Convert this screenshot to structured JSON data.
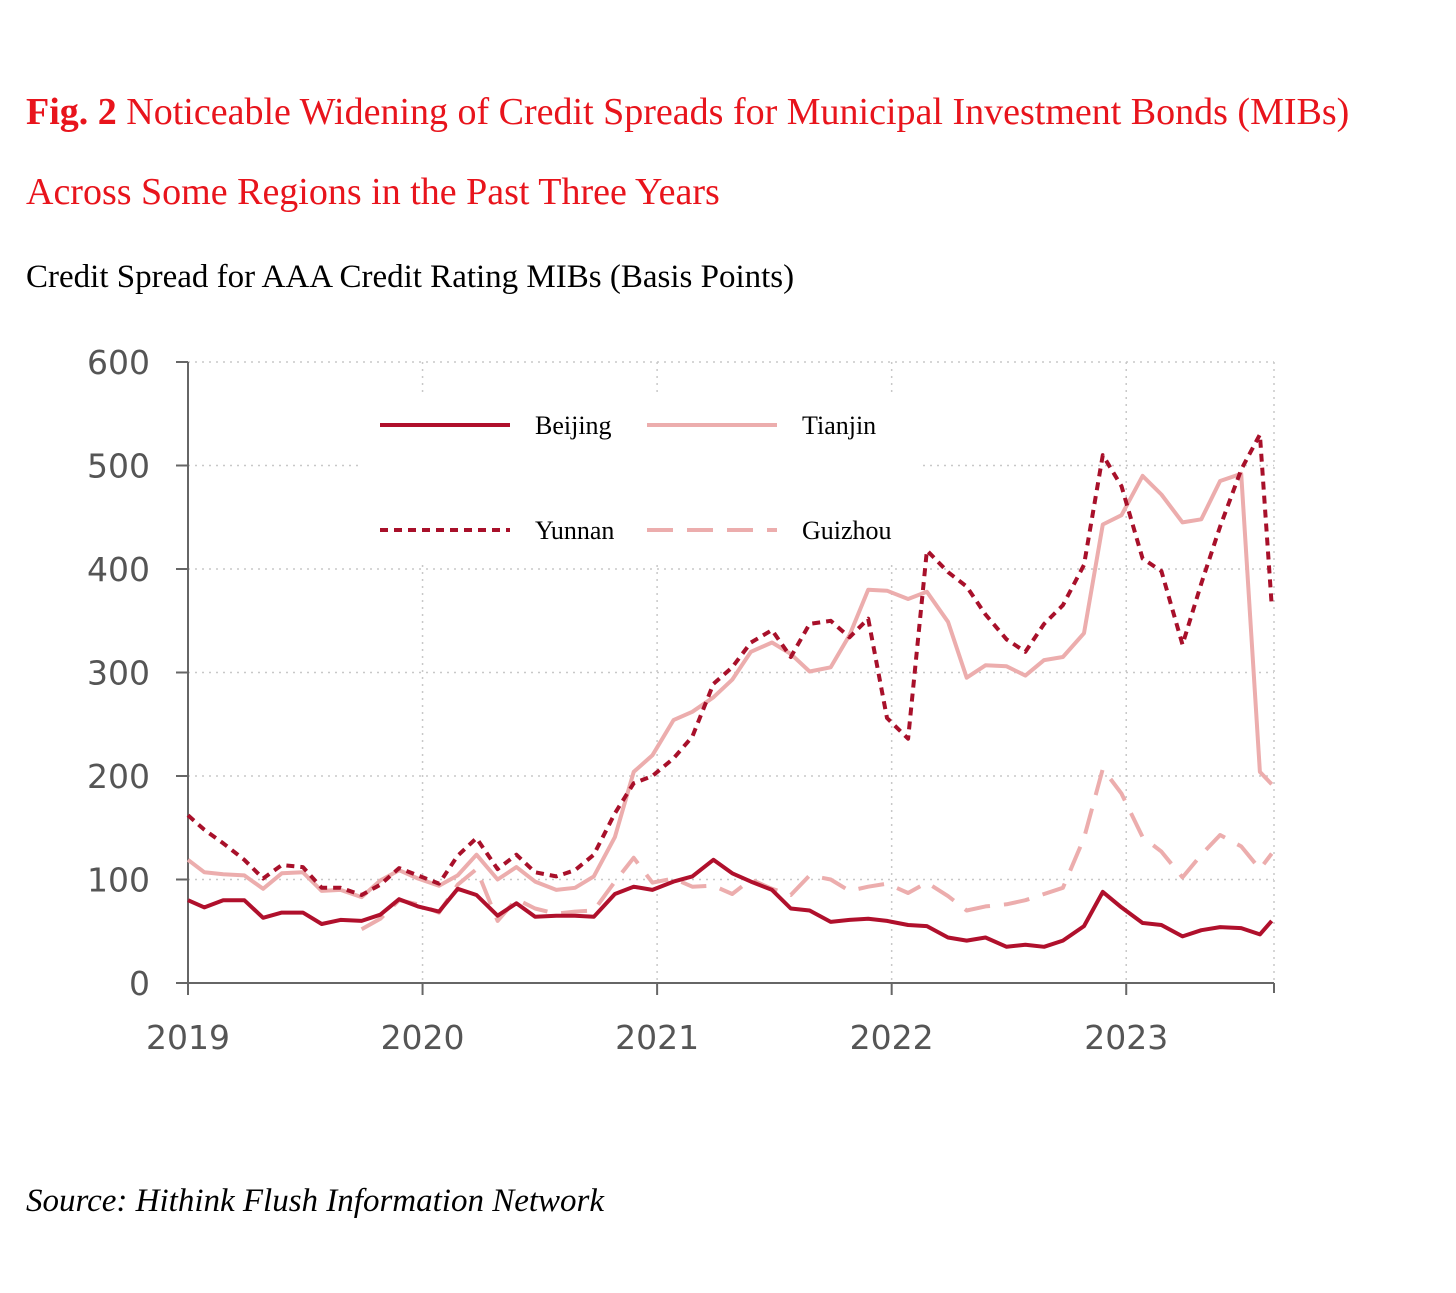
{
  "figure": {
    "label": "Fig. 2",
    "title": "Noticeable Widening of Credit Spreads for Municipal Investment Bonds (MIBs) Across Some Regions in the Past Three Years",
    "source": "Source: Hithink Flush Information Network"
  },
  "chart_data": {
    "type": "line",
    "title": "Credit Spread for AAA Credit Rating MIBs (Basis Points)",
    "xlabel": "",
    "ylabel": "",
    "xlim": [
      2019.0,
      2023.63
    ],
    "ylim": [
      0,
      600
    ],
    "x_ticks": [
      "2019",
      "2020",
      "2021",
      "2022",
      "2023"
    ],
    "y_ticks": [
      0,
      100,
      200,
      300,
      400,
      500,
      600
    ],
    "grid": true,
    "legend_position": "top-center",
    "series": [
      {
        "name": "Beijing",
        "style": "solid",
        "color": "#b0102c",
        "points": [
          [
            2019.0,
            80
          ],
          [
            2019.07,
            73
          ],
          [
            2019.15,
            80
          ],
          [
            2019.24,
            80
          ],
          [
            2019.32,
            63
          ],
          [
            2019.4,
            68
          ],
          [
            2019.49,
            68
          ],
          [
            2019.57,
            57
          ],
          [
            2019.65,
            61
          ],
          [
            2019.74,
            60
          ],
          [
            2019.82,
            66
          ],
          [
            2019.9,
            81
          ],
          [
            2019.98,
            74
          ],
          [
            2020.07,
            69
          ],
          [
            2020.15,
            91
          ],
          [
            2020.23,
            85
          ],
          [
            2020.32,
            65
          ],
          [
            2020.4,
            77
          ],
          [
            2020.48,
            64
          ],
          [
            2020.57,
            65
          ],
          [
            2020.65,
            65
          ],
          [
            2020.73,
            64
          ],
          [
            2020.82,
            86
          ],
          [
            2020.9,
            93
          ],
          [
            2020.98,
            90
          ],
          [
            2021.07,
            98
          ],
          [
            2021.15,
            103
          ],
          [
            2021.24,
            119
          ],
          [
            2021.32,
            106
          ],
          [
            2021.4,
            98
          ],
          [
            2021.49,
            90
          ],
          [
            2021.57,
            72
          ],
          [
            2021.65,
            70
          ],
          [
            2021.74,
            59
          ],
          [
            2021.82,
            61
          ],
          [
            2021.9,
            62
          ],
          [
            2021.98,
            60
          ],
          [
            2022.07,
            56
          ],
          [
            2022.15,
            55
          ],
          [
            2022.24,
            44
          ],
          [
            2022.32,
            41
          ],
          [
            2022.4,
            44
          ],
          [
            2022.49,
            35
          ],
          [
            2022.57,
            37
          ],
          [
            2022.65,
            35
          ],
          [
            2022.73,
            41
          ],
          [
            2022.82,
            55
          ],
          [
            2022.9,
            88
          ],
          [
            2022.98,
            73
          ],
          [
            2023.07,
            58
          ],
          [
            2023.15,
            56
          ],
          [
            2023.24,
            45
          ],
          [
            2023.32,
            51
          ],
          [
            2023.4,
            54
          ],
          [
            2023.49,
            53
          ],
          [
            2023.57,
            47
          ],
          [
            2023.62,
            60
          ]
        ]
      },
      {
        "name": "Tianjin",
        "style": "solid",
        "color": "#ecadad",
        "points": [
          [
            2019.0,
            119
          ],
          [
            2019.07,
            107
          ],
          [
            2019.15,
            105
          ],
          [
            2019.24,
            104
          ],
          [
            2019.32,
            91
          ],
          [
            2019.4,
            106
          ],
          [
            2019.49,
            107
          ],
          [
            2019.57,
            89
          ],
          [
            2019.65,
            90
          ],
          [
            2019.74,
            83
          ],
          [
            2019.82,
            99
          ],
          [
            2019.9,
            109
          ],
          [
            2019.98,
            101
          ],
          [
            2020.07,
            94
          ],
          [
            2020.15,
            104
          ],
          [
            2020.23,
            124
          ],
          [
            2020.32,
            100
          ],
          [
            2020.4,
            112
          ],
          [
            2020.48,
            98
          ],
          [
            2020.57,
            90
          ],
          [
            2020.65,
            92
          ],
          [
            2020.73,
            103
          ],
          [
            2020.82,
            141
          ],
          [
            2020.9,
            204
          ],
          [
            2020.98,
            220
          ],
          [
            2021.07,
            254
          ],
          [
            2021.15,
            262
          ],
          [
            2021.24,
            276
          ],
          [
            2021.32,
            293
          ],
          [
            2021.4,
            320
          ],
          [
            2021.49,
            329
          ],
          [
            2021.57,
            318
          ],
          [
            2021.65,
            301
          ],
          [
            2021.74,
            305
          ],
          [
            2021.82,
            336
          ],
          [
            2021.9,
            380
          ],
          [
            2021.98,
            379
          ],
          [
            2022.07,
            371
          ],
          [
            2022.15,
            378
          ],
          [
            2022.24,
            349
          ],
          [
            2022.32,
            295
          ],
          [
            2022.4,
            307
          ],
          [
            2022.49,
            306
          ],
          [
            2022.57,
            297
          ],
          [
            2022.65,
            312
          ],
          [
            2022.73,
            315
          ],
          [
            2022.82,
            338
          ],
          [
            2022.9,
            443
          ],
          [
            2022.98,
            452
          ],
          [
            2023.07,
            490
          ],
          [
            2023.15,
            472
          ],
          [
            2023.24,
            445
          ],
          [
            2023.32,
            448
          ],
          [
            2023.4,
            485
          ],
          [
            2023.49,
            492
          ],
          [
            2023.57,
            204
          ],
          [
            2023.62,
            192
          ]
        ]
      },
      {
        "name": "Yunnan",
        "style": "dotted",
        "color": "#a8102a",
        "points": [
          [
            2019.0,
            162
          ],
          [
            2019.07,
            148
          ],
          [
            2019.15,
            135
          ],
          [
            2019.24,
            119
          ],
          [
            2019.32,
            101
          ],
          [
            2019.4,
            114
          ],
          [
            2019.49,
            112
          ],
          [
            2019.57,
            92
          ],
          [
            2019.65,
            92
          ],
          [
            2019.74,
            85
          ],
          [
            2019.82,
            95
          ],
          [
            2019.9,
            111
          ],
          [
            2019.98,
            104
          ],
          [
            2020.07,
            96
          ],
          [
            2020.15,
            123
          ],
          [
            2020.23,
            140
          ],
          [
            2020.32,
            110
          ],
          [
            2020.4,
            124
          ],
          [
            2020.48,
            107
          ],
          [
            2020.57,
            103
          ],
          [
            2020.65,
            109
          ],
          [
            2020.73,
            124
          ],
          [
            2020.82,
            164
          ],
          [
            2020.9,
            193
          ],
          [
            2020.98,
            200
          ],
          [
            2021.07,
            217
          ],
          [
            2021.15,
            238
          ],
          [
            2021.24,
            289
          ],
          [
            2021.32,
            305
          ],
          [
            2021.4,
            329
          ],
          [
            2021.49,
            341
          ],
          [
            2021.57,
            315
          ],
          [
            2021.65,
            347
          ],
          [
            2021.74,
            350
          ],
          [
            2021.82,
            334
          ],
          [
            2021.9,
            352
          ],
          [
            2021.98,
            256
          ],
          [
            2022.07,
            236
          ],
          [
            2022.15,
            418
          ],
          [
            2022.24,
            397
          ],
          [
            2022.32,
            383
          ],
          [
            2022.4,
            356
          ],
          [
            2022.49,
            332
          ],
          [
            2022.57,
            320
          ],
          [
            2022.65,
            347
          ],
          [
            2022.73,
            365
          ],
          [
            2022.82,
            404
          ],
          [
            2022.9,
            510
          ],
          [
            2022.98,
            480
          ],
          [
            2023.07,
            410
          ],
          [
            2023.15,
            398
          ],
          [
            2023.24,
            327
          ],
          [
            2023.32,
            386
          ],
          [
            2023.4,
            441
          ],
          [
            2023.49,
            496
          ],
          [
            2023.57,
            530
          ],
          [
            2023.62,
            365
          ]
        ]
      },
      {
        "name": "Guizhou",
        "style": "dashed",
        "color": "#ecadad",
        "points": [
          [
            2019.74,
            52
          ],
          [
            2019.82,
            62
          ],
          [
            2019.9,
            80
          ],
          [
            2019.98,
            76
          ],
          [
            2020.07,
            68
          ],
          [
            2020.15,
            95
          ],
          [
            2020.23,
            110
          ],
          [
            2020.32,
            60
          ],
          [
            2020.4,
            81
          ],
          [
            2020.48,
            72
          ],
          [
            2020.57,
            67
          ],
          [
            2020.65,
            69
          ],
          [
            2020.73,
            70
          ],
          [
            2020.82,
            98
          ],
          [
            2020.9,
            121
          ],
          [
            2020.98,
            97
          ],
          [
            2021.07,
            101
          ],
          [
            2021.15,
            93
          ],
          [
            2021.24,
            94
          ],
          [
            2021.32,
            86
          ],
          [
            2021.4,
            100
          ],
          [
            2021.49,
            91
          ],
          [
            2021.57,
            85
          ],
          [
            2021.65,
            104
          ],
          [
            2021.74,
            100
          ],
          [
            2021.82,
            89
          ],
          [
            2021.9,
            93
          ],
          [
            2021.98,
            96
          ],
          [
            2022.07,
            87
          ],
          [
            2022.15,
            97
          ],
          [
            2022.24,
            84
          ],
          [
            2022.32,
            70
          ],
          [
            2022.4,
            74
          ],
          [
            2022.49,
            76
          ],
          [
            2022.57,
            80
          ],
          [
            2022.65,
            86
          ],
          [
            2022.73,
            92
          ],
          [
            2022.82,
            140
          ],
          [
            2022.9,
            207
          ],
          [
            2022.98,
            183
          ],
          [
            2023.07,
            141
          ],
          [
            2023.15,
            127
          ],
          [
            2023.24,
            102
          ],
          [
            2023.32,
            124
          ],
          [
            2023.4,
            143
          ],
          [
            2023.49,
            132
          ],
          [
            2023.57,
            110
          ],
          [
            2023.62,
            125
          ]
        ]
      }
    ]
  }
}
